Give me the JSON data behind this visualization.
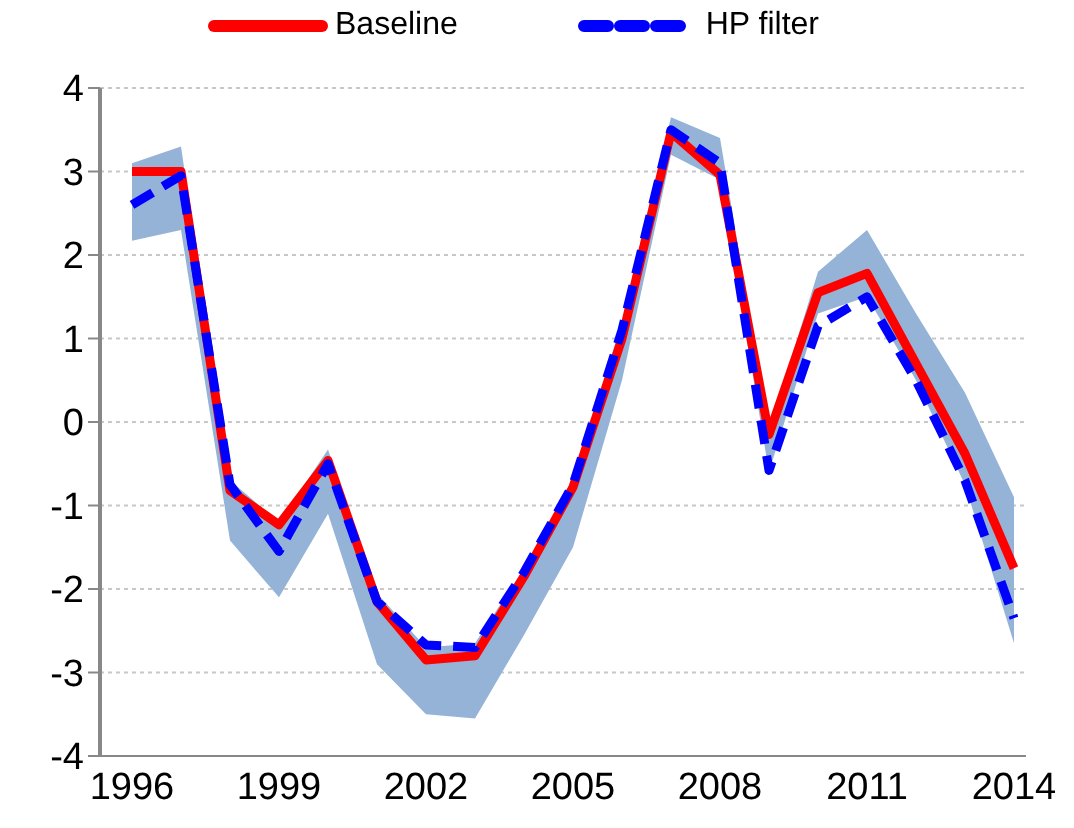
{
  "chart_data": {
    "type": "line",
    "categories": [
      "1996",
      null,
      null,
      "1999",
      null,
      null,
      "2002",
      null,
      null,
      "2005",
      null,
      null,
      "2008",
      null,
      null,
      "2011",
      null,
      null,
      "2014"
    ],
    "series": [
      {
        "name": "Baseline",
        "color": "#ff0000",
        "line_style": "solid",
        "values": [
          3.0,
          3.0,
          -0.82,
          -1.23,
          -0.46,
          -2.15,
          -2.85,
          -2.8,
          -1.85,
          -0.78,
          1.0,
          3.47,
          2.96,
          -0.15,
          1.55,
          1.78,
          0.7,
          -0.38,
          -1.75
        ],
        "lower": [
          2.17,
          2.3,
          -1.42,
          -2.1,
          -1.1,
          -2.9,
          -3.5,
          -3.55,
          -2.55,
          -1.5,
          0.5,
          3.2,
          2.9,
          -0.6,
          1.3,
          1.5,
          0.5,
          -0.75,
          -2.65
        ],
        "upper": [
          3.1,
          3.3,
          -0.7,
          -1.2,
          -0.33,
          -2.05,
          -2.7,
          -2.65,
          -1.75,
          -0.7,
          1.2,
          3.65,
          3.4,
          -0.1,
          1.8,
          2.3,
          1.3,
          0.35,
          -0.9
        ]
      },
      {
        "name": "HP filter",
        "color": "#0000ff",
        "line_style": "dashed",
        "values": [
          2.6,
          2.95,
          -0.75,
          -1.55,
          -0.5,
          -2.15,
          -2.67,
          -2.7,
          -1.8,
          -0.75,
          1.1,
          3.5,
          3.1,
          -0.58,
          1.15,
          1.5,
          0.5,
          -0.7,
          -2.35
        ]
      }
    ],
    "ylim": [
      -4,
      4
    ],
    "yticks": [
      -4,
      -3,
      -2,
      -1,
      0,
      1,
      2,
      3,
      4
    ],
    "grid": "y",
    "legend": "top",
    "marker": "none"
  }
}
